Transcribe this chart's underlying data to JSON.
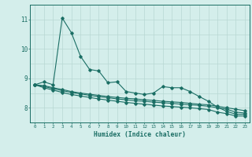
{
  "xlabel": "Humidex (Indice chaleur)",
  "background_color": "#d4eeeb",
  "grid_color": "#b8d8d4",
  "line_color": "#1a6e64",
  "xlim": [
    -0.5,
    23.5
  ],
  "ylim": [
    7.5,
    11.5
  ],
  "yticks": [
    8,
    9,
    10,
    11
  ],
  "xticks": [
    0,
    1,
    2,
    3,
    4,
    5,
    6,
    7,
    8,
    9,
    10,
    11,
    12,
    13,
    14,
    15,
    16,
    17,
    18,
    19,
    20,
    21,
    22,
    23
  ],
  "line1_x": [
    0,
    1,
    2,
    3,
    4,
    5,
    6,
    7,
    8,
    9,
    10,
    11,
    12,
    13,
    14,
    15,
    16,
    17,
    18,
    19,
    20,
    21,
    22,
    23
  ],
  "line1_y": [
    8.78,
    8.88,
    8.78,
    11.05,
    10.55,
    9.75,
    9.3,
    9.25,
    8.85,
    8.88,
    8.55,
    8.5,
    8.45,
    8.5,
    8.72,
    8.68,
    8.68,
    8.55,
    8.38,
    8.22,
    8.02,
    7.88,
    7.78,
    7.78
  ],
  "line2_x": [
    0,
    1,
    2,
    3,
    4,
    5,
    6,
    7,
    8,
    9,
    10,
    11,
    12,
    13,
    14,
    15,
    16,
    17,
    18,
    19,
    20,
    21,
    22,
    23
  ],
  "line2_y": [
    8.78,
    8.75,
    8.68,
    8.62,
    8.55,
    8.5,
    8.46,
    8.42,
    8.38,
    8.35,
    8.32,
    8.3,
    8.27,
    8.25,
    8.22,
    8.2,
    8.18,
    8.15,
    8.12,
    8.1,
    8.05,
    8.0,
    7.95,
    7.9
  ],
  "line3_x": [
    0,
    1,
    2,
    3,
    4,
    5,
    6,
    7,
    8,
    9,
    10,
    11,
    12,
    13,
    14,
    15,
    16,
    17,
    18,
    19,
    20,
    21,
    22,
    23
  ],
  "line3_y": [
    8.78,
    8.72,
    8.65,
    8.58,
    8.52,
    8.47,
    8.42,
    8.38,
    8.34,
    8.3,
    8.27,
    8.24,
    8.22,
    8.19,
    8.17,
    8.15,
    8.12,
    8.1,
    8.08,
    8.05,
    8.0,
    7.95,
    7.85,
    7.82
  ],
  "line4_x": [
    0,
    1,
    2,
    3,
    4,
    5,
    6,
    7,
    8,
    9,
    10,
    11,
    12,
    13,
    14,
    15,
    16,
    17,
    18,
    19,
    20,
    21,
    22,
    23
  ],
  "line4_y": [
    8.78,
    8.68,
    8.6,
    8.52,
    8.45,
    8.4,
    8.35,
    8.3,
    8.26,
    8.22,
    8.18,
    8.15,
    8.12,
    8.09,
    8.06,
    8.04,
    8.02,
    8.0,
    7.97,
    7.94,
    7.85,
    7.8,
    7.72,
    7.72
  ]
}
